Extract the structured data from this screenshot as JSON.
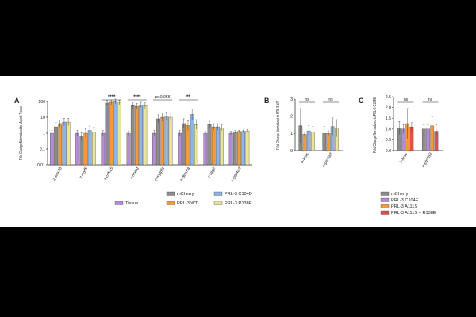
{
  "colors": {
    "Tissue": "#b58bd6",
    "mCherry": "#8c8c8c",
    "PRL-3 WT": "#ef9a3c",
    "PRL-3 C104D": "#8fb3e6",
    "PRL-3 R138E": "#e8e49a",
    "PRL-3 C104E": "#b58bd6",
    "PRL-3 A111S": "#ef9a3c",
    "PRL-3 A111S + R138E": "#e05050"
  },
  "chart_data": [
    {
      "panel": "A",
      "type": "bar",
      "scale": "log",
      "ylabel": "Fold Change Normalized to Muscle Tissue",
      "ylim": [
        0.01,
        100
      ],
      "yticks": [
        "0.01",
        "0.1",
        "1",
        "10",
        "100"
      ],
      "categories": [
        "z-pax7b",
        "z-myf5",
        "z-cdh15",
        "z-myog",
        "z-mylpfa",
        "z-desma",
        "z-rag2",
        "z-ptp4a3"
      ],
      "series": [
        {
          "name": "Tissue",
          "values": [
            1,
            1,
            1,
            1,
            1,
            1,
            1,
            1
          ],
          "err": [
            1.5,
            1.5,
            1.5,
            1.4,
            1.5,
            1.5,
            1.4,
            1.3
          ]
        },
        {
          "name": "mCherry",
          "values": [
            2.5,
            0.6,
            80,
            55,
            8,
            4,
            3.5,
            1.2
          ],
          "err": [
            1.8,
            1.8,
            1.5,
            1.5,
            1.8,
            2,
            1.6,
            1.2
          ]
        },
        {
          "name": "PRL-3 WT",
          "values": [
            4,
            1,
            90,
            50,
            10,
            3,
            2.5,
            1.3
          ],
          "err": [
            1.7,
            1.9,
            1.4,
            1.5,
            1.8,
            2,
            1.6,
            1.2
          ]
        },
        {
          "name": "PRL-3 C104D",
          "values": [
            5,
            1.5,
            100,
            60,
            12,
            15,
            2.5,
            1.3
          ],
          "err": [
            1.7,
            1.9,
            1.4,
            1.5,
            1.8,
            2.2,
            1.6,
            1.2
          ]
        },
        {
          "name": "PRL-3 R138E",
          "values": [
            5,
            1.2,
            85,
            55,
            10,
            3.5,
            2.2,
            1.4
          ],
          "err": [
            1.7,
            1.9,
            1.4,
            1.5,
            1.8,
            2,
            1.5,
            1.2
          ]
        }
      ],
      "significance": [
        {
          "category": "z-cdh15",
          "label": "****"
        },
        {
          "category": "z-myog",
          "label": "****"
        },
        {
          "category": "z-mylpfa",
          "label": "p≤0.055"
        },
        {
          "category": "z-desma",
          "label": "**"
        }
      ],
      "legend": [
        "Tissue",
        "mCherry",
        "PRL-3 C104D",
        "PRL-3 WT",
        "PRL-3 R138E"
      ]
    },
    {
      "panel": "B",
      "type": "bar",
      "ylabel": "Fold Change Normalized to PRL-3 WT",
      "ylim": [
        0,
        3
      ],
      "yticks": [
        "0",
        "1",
        "2",
        "3"
      ],
      "categories": [
        "h-kras",
        "h-ptp4a3"
      ],
      "series": [
        {
          "name": "mCherry",
          "values": [
            1.45,
            1.0
          ],
          "err": [
            1.0,
            0.4
          ]
        },
        {
          "name": "PRL-3 WT",
          "values": [
            0.95,
            1.0
          ],
          "err": [
            0.15,
            0.15
          ]
        },
        {
          "name": "PRL-3 C104D",
          "values": [
            1.15,
            1.4
          ],
          "err": [
            0.3,
            0.5
          ]
        },
        {
          "name": "PRL-3 R138E",
          "values": [
            1.1,
            1.3
          ],
          "err": [
            0.3,
            0.5
          ]
        }
      ],
      "significance": [
        {
          "category": "h-kras",
          "label": "ns"
        },
        {
          "category": "h-ptp4a3",
          "label": "ns"
        }
      ]
    },
    {
      "panel": "C",
      "type": "bar",
      "ylabel": "Fold Change Normalized to PRL-3 C104E",
      "ylim": [
        0,
        2.5
      ],
      "yticks": [
        "0.0",
        "0.5",
        "1.0",
        "1.5",
        "2.0",
        "2.5"
      ],
      "categories": [
        "h-kras",
        "h-ptp4a3"
      ],
      "series": [
        {
          "name": "mCherry",
          "values": [
            1.05,
            1.0
          ],
          "err": [
            0.3,
            0.2
          ]
        },
        {
          "name": "PRL-3 C104E",
          "values": [
            1.0,
            1.0
          ],
          "err": [
            0.2,
            0.2
          ]
        },
        {
          "name": "PRL-3 A111S",
          "values": [
            1.25,
            1.15
          ],
          "err": [
            0.7,
            0.4
          ]
        },
        {
          "name": "PRL-3 A111S + R138E",
          "values": [
            1.1,
            0.9
          ],
          "err": [
            0.2,
            0.3
          ]
        }
      ],
      "significance": [
        {
          "category": "h-kras",
          "label": "ns"
        },
        {
          "category": "h-ptp4a3",
          "label": "ns"
        }
      ],
      "legend": [
        "mCherry",
        "PRL-3 C104E",
        "PRL-3 A111S",
        "PRL-3 A111S + R138E"
      ]
    }
  ]
}
